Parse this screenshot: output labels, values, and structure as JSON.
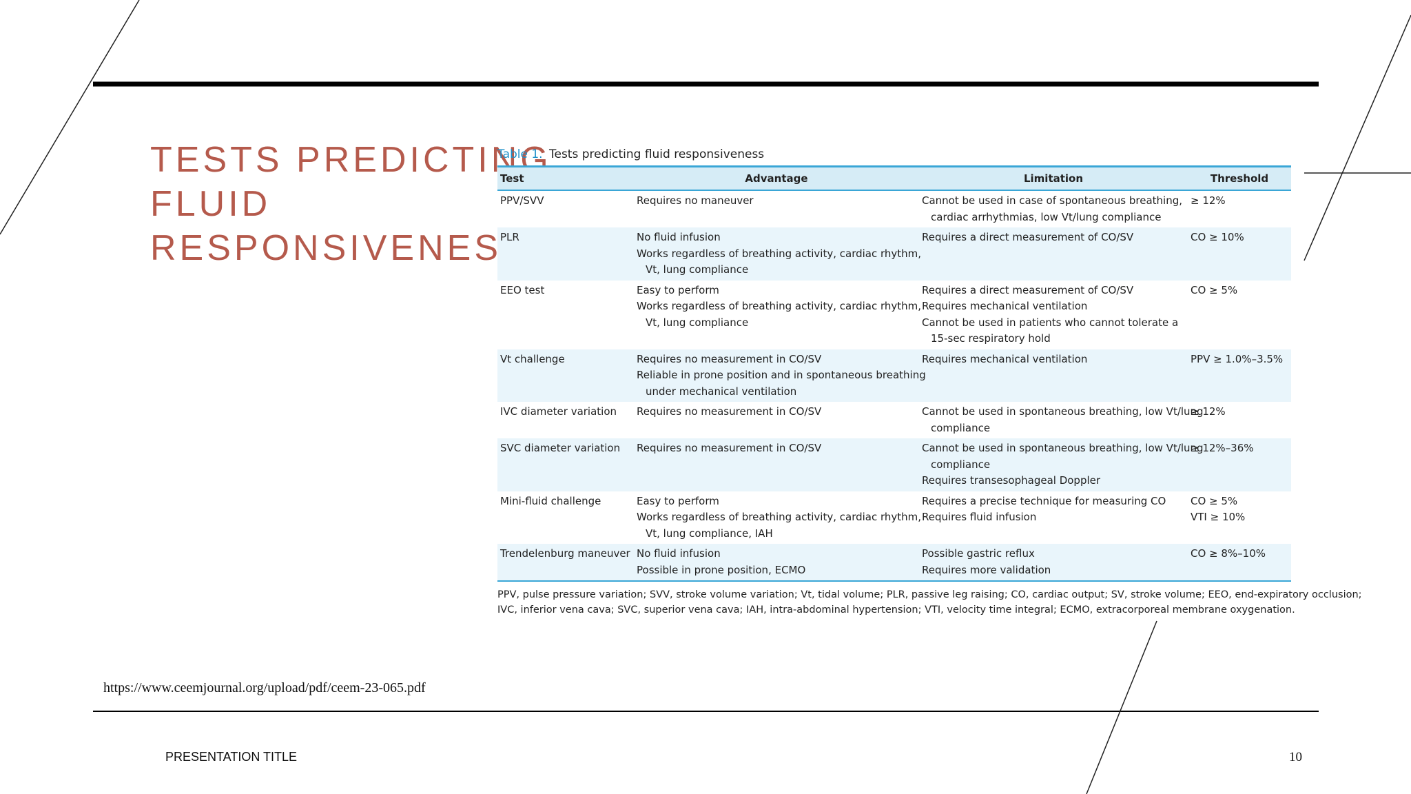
{
  "slide": {
    "title_lines": [
      "TESTS PREDICTING",
      "FLUID",
      "RESPONSIVENESS"
    ],
    "source_url": "https://www.ceemjournal.org/upload/pdf/ceem-23-065.pdf",
    "footer_title": "PRESENTATION TITLE",
    "page_number": "10",
    "colors": {
      "title": "#b55a4c",
      "table_accent": "#3aa6d6",
      "row_shade": "#e9f5fb",
      "header_bg": "#d6ecf6"
    }
  },
  "table": {
    "caption_label": "Table 1.",
    "caption_text": "Tests predicting fluid responsiveness",
    "headers": [
      "Test",
      "Advantage",
      "Limitation",
      "Threshold"
    ],
    "rows": [
      {
        "test": "PPV/SVV",
        "advantage": [
          "Requires no maneuver"
        ],
        "limitation": [
          "Cannot be used in case of spontaneous breathing,",
          "cardiac arrhythmias, low Vt/lung compliance"
        ],
        "threshold": [
          "≥ 12%"
        ]
      },
      {
        "test": "PLR",
        "advantage": [
          "No fluid infusion",
          "Works regardless of breathing activity, cardiac rhythm,",
          "Vt, lung compliance"
        ],
        "limitation": [
          "Requires a direct measurement of CO/SV"
        ],
        "threshold": [
          "CO ≥ 10%"
        ]
      },
      {
        "test": "EEO test",
        "advantage": [
          "Easy to perform",
          "Works regardless of breathing activity, cardiac rhythm,",
          "Vt, lung compliance"
        ],
        "limitation": [
          "Requires a direct measurement of CO/SV",
          "Requires mechanical ventilation",
          "Cannot be used in patients who cannot tolerate a",
          "15-sec respiratory hold"
        ],
        "threshold": [
          "CO ≥ 5%"
        ]
      },
      {
        "test": "Vt challenge",
        "advantage": [
          "Requires no measurement in CO/SV",
          "Reliable in prone position and in spontaneous breathing",
          "under mechanical ventilation"
        ],
        "limitation": [
          "Requires mechanical ventilation"
        ],
        "threshold": [
          "PPV ≥ 1.0%–3.5%"
        ]
      },
      {
        "test": "IVC diameter variation",
        "advantage": [
          "Requires no measurement in CO/SV"
        ],
        "limitation": [
          "Cannot be used in spontaneous breathing, low Vt/lung",
          "compliance"
        ],
        "threshold": [
          "≥ 12%"
        ]
      },
      {
        "test": "SVC diameter variation",
        "advantage": [
          "Requires no measurement in CO/SV"
        ],
        "limitation": [
          "Cannot be used in spontaneous breathing, low Vt/lung",
          "compliance",
          "Requires transesophageal Doppler"
        ],
        "threshold": [
          "≥ 12%–36%"
        ]
      },
      {
        "test": "Mini-fluid challenge",
        "advantage": [
          "Easy to perform",
          "Works regardless of breathing activity, cardiac rhythm,",
          "Vt, lung compliance, IAH"
        ],
        "limitation": [
          "Requires a precise technique for measuring CO",
          "Requires fluid infusion"
        ],
        "threshold": [
          "CO ≥ 5%",
          "VTI ≥ 10%"
        ]
      },
      {
        "test": "Trendelenburg maneuver",
        "advantage": [
          "No fluid infusion",
          "Possible in prone position, ECMO"
        ],
        "limitation": [
          "Possible gastric reflux",
          "Requires more validation"
        ],
        "threshold": [
          "CO ≥ 8%–10%"
        ]
      }
    ],
    "footnote_lines": [
      "PPV, pulse pressure variation; SVV, stroke volume variation; Vt, tidal volume; PLR, passive leg raising; CO, cardiac output; SV, stroke volume; EEO, end-expiratory occlusion;",
      "IVC, inferior vena cava; SVC, superior vena cava; IAH, intra-abdominal hypertension; VTI, velocity time integral; ECMO, extracorporeal membrane oxygenation."
    ]
  }
}
